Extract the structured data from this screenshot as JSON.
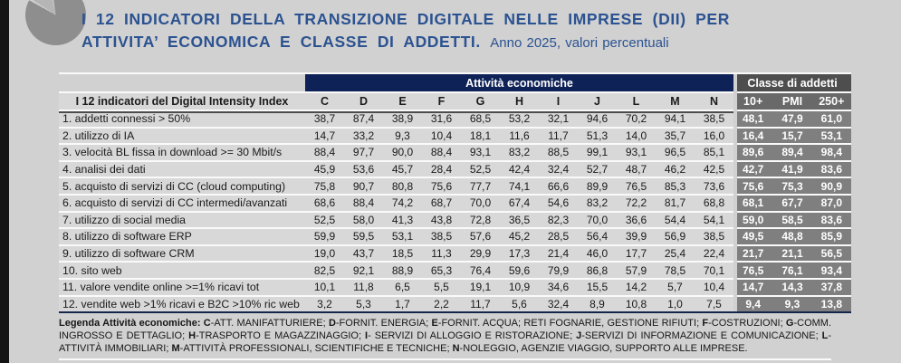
{
  "header": {
    "title_line1": "I 12 INDICATORI DELLA TRANSIZIONE DIGITALE NELLE IMPRESE (DII) PER",
    "title_line2": "ATTIVITA’ ECONOMICA E CLASSE DI ADDETTI.",
    "subtitle": "Anno 2025, valori percentuali"
  },
  "colors": {
    "page_background": "#d1d1d1",
    "title_blue": "#2b5291",
    "activity_header_navy": "#0e2257",
    "size_header_dark_gray": "#4e4e4e",
    "size_subheader_gray": "#696969",
    "size_cell_gray": "#7f7f7f",
    "row_background": "#d8d8d8",
    "separator_white": "#fafafa"
  },
  "chart_data": {
    "type": "table",
    "title": "I 12 INDICATORI DELLA TRANSIZIONE DIGITALE NELLE IMPRESE (DII) PER ATTIVITA’ ECONOMICA E CLASSE DI ADDETTI",
    "subtitle": "Anno 2025, valori percentuali",
    "column_groups": [
      "Attività economiche",
      "Classe di addetti"
    ],
    "label_header": "I 12 indicatori del Digital Intensity Index",
    "activity_columns": [
      "C",
      "D",
      "E",
      "F",
      "G",
      "H",
      "I",
      "J",
      "L",
      "M",
      "N"
    ],
    "size_columns": [
      "10+",
      "PMI",
      "250+"
    ],
    "rows": [
      {
        "label": "1. addetti connessi > 50%",
        "activity": [
          "38,7",
          "87,4",
          "38,9",
          "31,6",
          "68,5",
          "53,2",
          "32,1",
          "94,6",
          "70,2",
          "94,1",
          "38,5"
        ],
        "size": [
          "48,1",
          "47,9",
          "61,0"
        ]
      },
      {
        "label": "2. utilizzo di IA",
        "activity": [
          "14,7",
          "33,2",
          "9,3",
          "10,4",
          "18,1",
          "11,6",
          "11,7",
          "51,3",
          "14,0",
          "35,7",
          "16,0"
        ],
        "size": [
          "16,4",
          "15,7",
          "53,1"
        ]
      },
      {
        "label": "3. velocità BL fissa in download >= 30 Mbit/s",
        "activity": [
          "88,4",
          "97,7",
          "90,0",
          "88,4",
          "93,1",
          "83,2",
          "88,5",
          "99,1",
          "93,1",
          "96,5",
          "85,1"
        ],
        "size": [
          "89,6",
          "89,4",
          "98,4"
        ]
      },
      {
        "label": "4. analisi dei dati",
        "activity": [
          "45,9",
          "53,6",
          "45,7",
          "28,4",
          "52,5",
          "42,4",
          "32,4",
          "52,7",
          "48,7",
          "46,2",
          "42,5"
        ],
        "size": [
          "42,7",
          "41,9",
          "83,6"
        ]
      },
      {
        "label": "5. acquisto di servizi di CC (cloud computing)",
        "activity": [
          "75,8",
          "90,7",
          "80,8",
          "75,6",
          "77,7",
          "74,1",
          "66,6",
          "89,9",
          "76,5",
          "85,3",
          "73,6"
        ],
        "size": [
          "75,6",
          "75,3",
          "90,9"
        ]
      },
      {
        "label": "6. acquisto di servizi di CC intermedi/avanzati",
        "activity": [
          "68,6",
          "88,4",
          "74,2",
          "68,7",
          "70,0",
          "67,4",
          "54,6",
          "83,2",
          "72,2",
          "81,7",
          "68,8"
        ],
        "size": [
          "68,1",
          "67,7",
          "87,0"
        ]
      },
      {
        "label": "7. utilizzo di social media",
        "activity": [
          "52,5",
          "58,0",
          "41,3",
          "43,8",
          "72,8",
          "36,5",
          "82,3",
          "70,0",
          "36,6",
          "54,4",
          "54,1"
        ],
        "size": [
          "59,0",
          "58,5",
          "83,6"
        ]
      },
      {
        "label": "8. utilizzo di software ERP",
        "activity": [
          "59,9",
          "59,5",
          "53,1",
          "38,5",
          "57,6",
          "45,2",
          "28,5",
          "56,4",
          "39,9",
          "56,9",
          "38,5"
        ],
        "size": [
          "49,5",
          "48,8",
          "85,9"
        ]
      },
      {
        "label": "9. utilizzo di software CRM",
        "activity": [
          "19,0",
          "43,7",
          "18,5",
          "11,3",
          "29,9",
          "17,3",
          "21,4",
          "46,0",
          "17,7",
          "25,4",
          "22,4"
        ],
        "size": [
          "21,7",
          "21,1",
          "56,5"
        ]
      },
      {
        "label": "10. sito web",
        "activity": [
          "82,5",
          "92,1",
          "88,9",
          "65,3",
          "76,4",
          "59,6",
          "79,9",
          "86,8",
          "57,9",
          "78,5",
          "70,1"
        ],
        "size": [
          "76,5",
          "76,1",
          "93,4"
        ]
      },
      {
        "label": "11. valore vendite online >=1% ricavi tot",
        "activity": [
          "10,1",
          "11,8",
          "6,5",
          "5,5",
          "19,1",
          "10,9",
          "34,6",
          "15,5",
          "14,2",
          "5,7",
          "10,4"
        ],
        "size": [
          "14,7",
          "14,3",
          "37,8"
        ]
      },
      {
        "label": "12. vendite web >1% ricavi e B2C >10% ric web",
        "activity": [
          "3,2",
          "5,3",
          "1,7",
          "2,2",
          "11,7",
          "5,6",
          "32,4",
          "8,9",
          "10,8",
          "1,0",
          "7,5"
        ],
        "size": [
          "9,4",
          "9,3",
          "13,8"
        ]
      }
    ]
  },
  "legend": {
    "intro": "Legenda Attività  economiche: ",
    "entries": [
      {
        "code": "C",
        "text": "-ATT.  MANIFATTURIERE;  "
      },
      {
        "code": "D",
        "text": "-FORNIT.  ENERGIA;  "
      },
      {
        "code": "E",
        "text": "-FORNIT.  ACQUA;  RETI  FOGNARIE,  GESTIONE  RIFIUTI;  "
      },
      {
        "code": "F",
        "text": "-COSTRUZIONI;  "
      },
      {
        "code": "G",
        "text": "-COMM.  INGROSSO  E  DETTAGLIO;  "
      },
      {
        "code": "H",
        "text": "-TRASPORTO  E  MAGAZZINAGGIO;  "
      },
      {
        "code": "I",
        "text": "-  SERVIZI  DI  ALLOGGIO  E  RISTORAZIONE;  "
      },
      {
        "code": "J",
        "text": "-SERVIZI  DI  INFORMAZIONE  E  COMUNICAZIONE;  "
      },
      {
        "code": "L",
        "text": "-ATTIVITÀ  IMMOBILIARI;  "
      },
      {
        "code": "M",
        "text": "-ATTIVITÀ  PROFESSIONALI,  SCIENTIFICHE  E  TECNICHE;  "
      },
      {
        "code": "N",
        "text": "-NOLEGGIO,  AGENZIE  VIAGGIO,  SUPPORTO  ALLE  IMPRESE."
      }
    ]
  }
}
